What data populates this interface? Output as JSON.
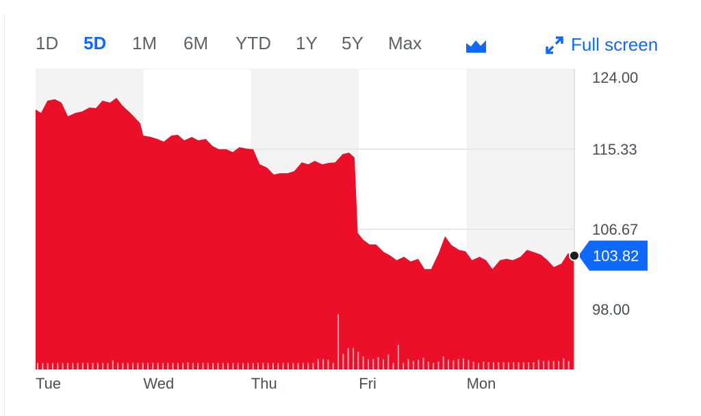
{
  "toolbar": {
    "ranges": [
      "1D",
      "5D",
      "1M",
      "6M",
      "YTD",
      "1Y",
      "5Y",
      "Max"
    ],
    "active_range": "5D",
    "chart_type_icon": "area-chart-icon",
    "fullscreen_label": "Full screen",
    "fullscreen_icon": "expand-arrows-icon"
  },
  "colors": {
    "area": "#eb0f29",
    "accent": "#0f69ff",
    "grid": "#e6e6e6",
    "shade": "#f3f3f3",
    "text": "#5b636a"
  },
  "chart_data": {
    "type": "area",
    "title": "",
    "xlabel": "",
    "ylabel": "",
    "x_unit": "trading days from Tue open",
    "x_ticks": [
      {
        "x": 0,
        "label": "Tue"
      },
      {
        "x": 1,
        "label": "Wed"
      },
      {
        "x": 2,
        "label": "Thu"
      },
      {
        "x": 3,
        "label": "Fri"
      },
      {
        "x": 4,
        "label": "Mon"
      }
    ],
    "y_ticks": [
      "124.00",
      "115.33",
      "106.67",
      "98.00"
    ],
    "y_tick_values": [
      124,
      115.33,
      106.67,
      98
    ],
    "ylim": [
      91.5,
      124
    ],
    "xlim": [
      0,
      5
    ],
    "grid": true,
    "last_price": "103.82",
    "last_price_value": 103.82,
    "x": [
      0,
      0.05,
      0.11,
      0.18,
      0.24,
      0.3,
      0.37,
      0.43,
      0.5,
      0.56,
      0.62,
      0.69,
      0.75,
      0.81,
      0.88,
      0.94,
      0.97,
      1.0,
      1.07,
      1.13,
      1.19,
      1.26,
      1.32,
      1.38,
      1.45,
      1.51,
      1.58,
      1.64,
      1.7,
      1.77,
      1.83,
      1.89,
      1.96,
      2.02,
      2.08,
      2.15,
      2.21,
      2.27,
      2.34,
      2.4,
      2.47,
      2.53,
      2.59,
      2.66,
      2.72,
      2.78,
      2.85,
      2.91,
      2.96,
      2.99,
      3.04,
      3.1,
      3.16,
      3.23,
      3.29,
      3.35,
      3.42,
      3.48,
      3.55,
      3.61,
      3.67,
      3.74,
      3.8,
      3.86,
      3.93,
      3.99,
      4.05,
      4.12,
      4.18,
      4.24,
      4.31,
      4.37,
      4.43,
      4.5,
      4.56,
      4.62,
      4.69,
      4.75,
      4.81,
      4.88,
      4.94,
      5.0
    ],
    "values": [
      119.63,
      119.26,
      120.59,
      120.74,
      120.37,
      118.89,
      119.26,
      119.41,
      119.85,
      119.78,
      120.59,
      120.37,
      120.89,
      120.0,
      119.26,
      118.52,
      118.15,
      116.81,
      116.66,
      116.44,
      116.15,
      116.81,
      116.89,
      116.29,
      116.66,
      116.29,
      116.44,
      115.7,
      115.33,
      115.33,
      115.03,
      115.55,
      115.4,
      115.33,
      113.7,
      113.33,
      112.59,
      112.74,
      112.74,
      112.96,
      113.92,
      113.7,
      114.07,
      113.7,
      113.85,
      113.92,
      114.81,
      114.96,
      114.44,
      106.29,
      105.55,
      105.03,
      105.03,
      104.21,
      103.84,
      103.33,
      103.7,
      103.18,
      103.47,
      102.36,
      102.36,
      104.07,
      105.92,
      104.96,
      104.44,
      104.29,
      103.33,
      103.7,
      103.33,
      102.36,
      103.33,
      103.47,
      103.33,
      103.7,
      104.44,
      104.21,
      103.92,
      103.33,
      102.59,
      102.96,
      104.07,
      103.82
    ],
    "volume_relative": [
      1,
      1,
      1,
      1,
      1,
      1,
      1,
      1,
      1,
      1,
      1,
      1,
      1,
      1,
      1,
      1.4,
      1,
      1,
      1,
      1,
      1,
      1,
      1,
      1,
      1,
      1,
      1,
      1,
      1,
      1,
      1.1,
      1,
      1,
      1,
      1,
      1,
      1,
      1,
      1,
      1,
      1,
      1,
      1,
      1,
      1,
      1,
      1,
      1,
      1,
      1,
      1,
      1,
      1,
      1,
      1,
      1,
      1.6,
      1.6,
      1.5,
      1,
      8.5,
      2.4,
      3.3,
      3.3,
      2.7,
      2.0,
      1.6,
      1.6,
      1.9,
      1.6,
      2.3,
      1.0,
      3.8,
      1.0,
      1.6,
      1.3,
      1.5,
      1.8,
      1.2,
      1.0,
      1.2,
      2.0,
      1.5,
      1.4,
      1.6,
      1.7,
      1.5,
      1.2,
      1.0,
      1.2,
      1.1,
      1.1,
      1.1,
      1.1,
      1.1,
      1.1,
      1.1,
      1.1,
      1.1,
      1.1,
      1.5,
      1.3,
      1.4,
      1.3,
      1.3,
      1.7,
      1.3
    ]
  }
}
